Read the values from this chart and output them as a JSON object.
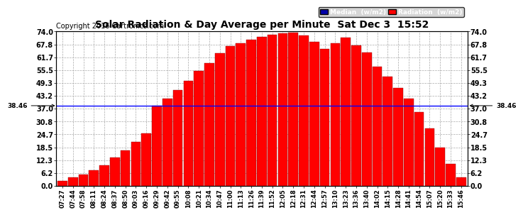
{
  "title": "Solar Radiation & Day Average per Minute  Sat Dec 3  15:52",
  "copyright": "Copyright 2016 Cartronics.com",
  "median_value": 38.46,
  "yticks": [
    0.0,
    6.2,
    12.3,
    18.5,
    24.7,
    30.8,
    37.0,
    43.2,
    49.3,
    55.5,
    61.7,
    67.8,
    74.0
  ],
  "ylim": [
    0,
    74.0
  ],
  "bar_color": "#FF0000",
  "bar_edge_color": "#880000",
  "median_color": "#0000FF",
  "background_color": "#FFFFFF",
  "grid_color": "#AAAAAA",
  "legend_median_bg": "#0000AA",
  "legend_radiation_bg": "#FF0000",
  "x_labels": [
    "07:27",
    "07:44",
    "07:58",
    "08:11",
    "08:24",
    "08:37",
    "08:50",
    "09:03",
    "09:16",
    "09:29",
    "09:42",
    "09:55",
    "10:08",
    "10:21",
    "10:34",
    "10:47",
    "11:00",
    "11:13",
    "11:26",
    "11:39",
    "11:52",
    "12:05",
    "12:18",
    "12:31",
    "12:44",
    "12:57",
    "13:10",
    "13:23",
    "13:36",
    "13:40",
    "14:02",
    "14:15",
    "14:28",
    "14:41",
    "14:54",
    "15:07",
    "15:20",
    "15:33",
    "15:46"
  ],
  "bar_values": [
    2.5,
    4.0,
    5.5,
    7.5,
    10.0,
    13.5,
    17.0,
    21.0,
    25.0,
    38.5,
    42.0,
    46.0,
    50.5,
    55.0,
    59.0,
    63.5,
    67.0,
    68.5,
    70.0,
    71.5,
    72.5,
    73.0,
    73.5,
    72.0,
    69.0,
    65.5,
    68.5,
    71.0,
    67.5,
    64.0,
    57.0,
    52.5,
    47.0,
    42.0,
    35.5,
    27.5,
    18.5,
    10.5,
    4.0
  ],
  "title_fontsize": 10,
  "tick_fontsize": 7,
  "copyright_fontsize": 7
}
